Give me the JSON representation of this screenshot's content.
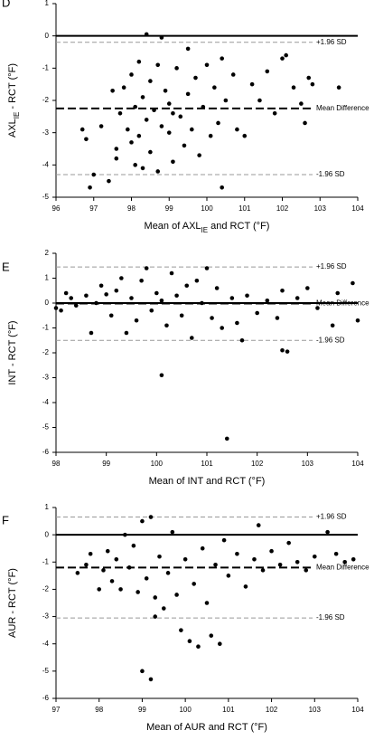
{
  "chart_data": [
    {
      "type": "scatter",
      "panel_label": "D",
      "x_label": [
        "Mean of AXL",
        "IE",
        " and RCT (°F)"
      ],
      "y_label": [
        "AXL",
        "IE",
        " - RCT (°F)"
      ],
      "color": "#000000",
      "xlim": [
        96,
        104
      ],
      "xticks": [
        96,
        97,
        98,
        99,
        100,
        101,
        102,
        103,
        104
      ],
      "ylim": [
        -5,
        1
      ],
      "yticks": [
        -5,
        -4,
        -3,
        -2,
        -1,
        0,
        1
      ],
      "reference_lines": [
        {
          "label": "+1.96 SD",
          "value": -0.2,
          "style": "thin"
        },
        {
          "label": "Mean Difference",
          "value": -2.25,
          "style": "thick"
        },
        {
          "label": "-1.96 SD",
          "value": -4.3,
          "style": "thin"
        }
      ],
      "x": [
        96.7,
        96.8,
        96.9,
        97,
        97.2,
        97.4,
        97.5,
        97.6,
        97.6,
        97.7,
        97.8,
        97.9,
        98,
        98,
        98.1,
        98.1,
        98.2,
        98.2,
        98.3,
        98.4,
        98.4,
        98.5,
        98.5,
        98.6,
        98.7,
        98.7,
        98.8,
        98.8,
        98.9,
        99,
        99,
        99.1,
        99.2,
        99.3,
        99.4,
        99.5,
        99.5,
        99.6,
        99.7,
        99.8,
        99.9,
        100,
        100.1,
        100.2,
        100.3,
        100.4,
        100.4,
        100.5,
        100.7,
        100.8,
        101,
        101.2,
        101.4,
        101.6,
        101.8,
        102,
        102.1,
        102.3,
        102.5,
        102.6,
        102.7,
        102.8,
        103.5,
        98.3,
        99.1
      ],
      "y": [
        -2.9,
        -3.2,
        -4.7,
        -4.3,
        -2.8,
        -4.5,
        -1.7,
        -3.5,
        -3.8,
        -2.4,
        -1.6,
        -2.9,
        -3.3,
        -1.2,
        -4.0,
        -2.2,
        -0.8,
        -3.1,
        -1.9,
        0.05,
        -2.6,
        -3.6,
        -1.4,
        -2.3,
        -4.2,
        -0.9,
        -2.8,
        -0.05,
        -1.7,
        -3.0,
        -2.1,
        -3.9,
        -1.0,
        -2.5,
        -3.4,
        -0.4,
        -1.8,
        -2.9,
        -1.3,
        -3.7,
        -2.2,
        -0.9,
        -3.1,
        -1.6,
        -2.7,
        -4.7,
        -0.7,
        -2.0,
        -1.2,
        -2.9,
        -3.1,
        -1.5,
        -2.0,
        -1.1,
        -2.4,
        -0.7,
        -0.6,
        -1.6,
        -2.1,
        -2.7,
        -1.3,
        -1.5,
        -1.6,
        -4.1,
        -2.4
      ]
    },
    {
      "type": "scatter",
      "panel_label": "E",
      "x_label": "Mean of INT and RCT (°F)",
      "y_label": "INT - RCT (°F)",
      "color": "#000000",
      "xlim": [
        98,
        104
      ],
      "xticks": [
        98,
        99,
        100,
        101,
        102,
        103,
        104
      ],
      "ylim": [
        -6,
        2
      ],
      "yticks": [
        -6,
        -5,
        -4,
        -3,
        -2,
        -1,
        0,
        1,
        2
      ],
      "reference_lines": [
        {
          "label": "+1.96 SD",
          "value": 1.45,
          "style": "thin"
        },
        {
          "label": "Mean Difference",
          "value": -0.02,
          "style": "thick"
        },
        {
          "label": "-1.96 SD",
          "value": -1.5,
          "style": "thin"
        }
      ],
      "x": [
        98,
        98.1,
        98.2,
        98.3,
        98.4,
        98.6,
        98.7,
        98.8,
        98.9,
        99,
        99.1,
        99.2,
        99.3,
        99.4,
        99.5,
        99.6,
        99.7,
        99.8,
        99.9,
        100,
        100.1,
        100.1,
        100.2,
        100.3,
        100.4,
        100.5,
        100.6,
        100.7,
        100.8,
        100.9,
        101,
        101.1,
        101.2,
        101.3,
        101.4,
        101.5,
        101.6,
        101.7,
        101.8,
        102,
        102.2,
        102.4,
        102.5,
        102.5,
        102.6,
        102.8,
        103,
        103.2,
        103.5,
        103.6,
        103.9,
        104
      ],
      "y": [
        -0.2,
        -0.3,
        0.4,
        0.2,
        -0.1,
        0.3,
        -1.2,
        0,
        0.7,
        0.35,
        -0.5,
        0.5,
        1.0,
        -1.2,
        0.2,
        -0.7,
        0.9,
        1.4,
        -0.3,
        0.4,
        -2.9,
        0.1,
        -0.9,
        1.2,
        0.3,
        -0.5,
        0.7,
        -1.4,
        0.9,
        0,
        1.4,
        -0.6,
        0.6,
        -1.0,
        -5.45,
        0.2,
        -0.8,
        -1.5,
        0.3,
        -0.4,
        0.1,
        -0.6,
        0.5,
        -1.9,
        -1.95,
        0.2,
        0.6,
        -0.2,
        -0.9,
        0.4,
        0.8,
        -0.7
      ]
    },
    {
      "type": "scatter",
      "panel_label": "F",
      "x_label": "Mean of AUR and RCT (°F)",
      "y_label": "AUR - RCT (°F)",
      "color": "#000000",
      "xlim": [
        97,
        104
      ],
      "xticks": [
        97,
        98,
        99,
        100,
        101,
        102,
        103,
        104
      ],
      "ylim": [
        -6,
        1
      ],
      "yticks": [
        -6,
        -5,
        -4,
        -3,
        -2,
        -1,
        0,
        1
      ],
      "reference_lines": [
        {
          "label": "+1.96 SD",
          "value": 0.65,
          "style": "thin"
        },
        {
          "label": "Mean Difference",
          "value": -1.2,
          "style": "thick"
        },
        {
          "label": "-1.96 SD",
          "value": -3.05,
          "style": "thin"
        }
      ],
      "x": [
        97.5,
        97.7,
        97.8,
        98,
        98.1,
        98.2,
        98.3,
        98.4,
        98.5,
        98.6,
        98.7,
        98.8,
        98.9,
        99,
        99,
        99.1,
        99.2,
        99.2,
        99.3,
        99.3,
        99.4,
        99.5,
        99.6,
        99.7,
        99.8,
        99.9,
        100,
        100.1,
        100.2,
        100.3,
        100.4,
        100.5,
        100.6,
        100.7,
        100.8,
        100.9,
        101,
        101.2,
        101.4,
        101.6,
        101.7,
        101.8,
        102,
        102.2,
        102.4,
        102.6,
        102.8,
        103,
        103.3,
        103.5,
        103.7,
        103.9
      ],
      "y": [
        -1.4,
        -1.1,
        -0.7,
        -2.0,
        -1.3,
        -0.6,
        -1.7,
        -0.9,
        -2.0,
        0,
        -1.2,
        -0.4,
        -2.1,
        -5.0,
        0.5,
        -1.6,
        -5.3,
        0.65,
        -2.3,
        -3.0,
        -0.8,
        -2.7,
        -1.4,
        0.1,
        -2.2,
        -3.5,
        -0.9,
        -3.9,
        -1.8,
        -4.1,
        -0.5,
        -2.5,
        -3.7,
        -1.1,
        -4.0,
        -0.2,
        -1.5,
        -0.7,
        -1.9,
        -0.9,
        0.35,
        -1.3,
        -0.6,
        -1.1,
        -0.3,
        -1.0,
        -1.3,
        -0.8,
        0.1,
        -0.7,
        -1.0,
        -0.9
      ]
    }
  ]
}
